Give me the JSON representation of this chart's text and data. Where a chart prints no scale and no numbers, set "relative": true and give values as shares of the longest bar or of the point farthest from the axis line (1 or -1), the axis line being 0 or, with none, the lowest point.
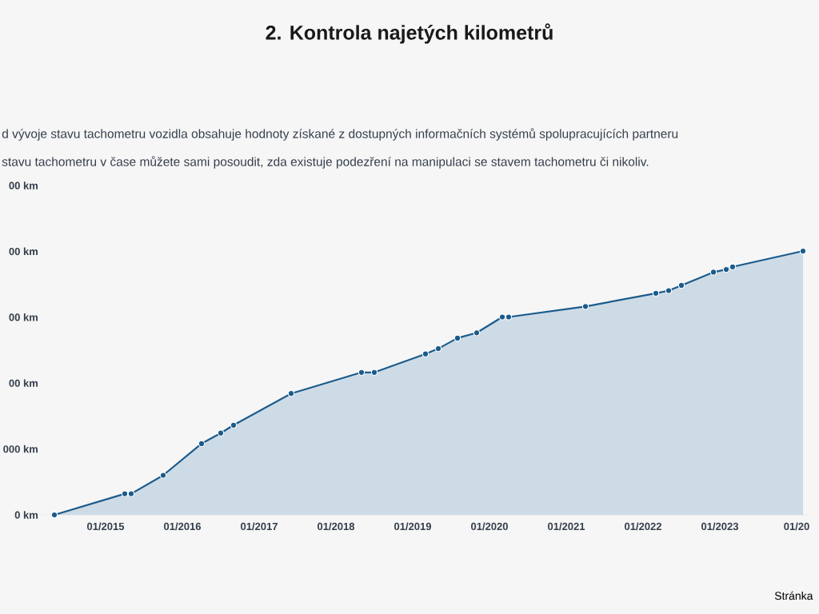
{
  "chart_data": {
    "type": "area",
    "title": "2. Kontrola najetých kilometrů",
    "subtitle": "d vývoje stavu tachometru vozidla obsahuje hodnoty získané z dostupných informačních systémů spolupracujících partneru",
    "annotations": [
      "stavu tachometru v čase můžete sami posoudit, zda existuje podezření na manipulaci se stavem tachometru či nikoliv.",
      "00 km",
      "00 km",
      "00 km",
      "00 km",
      "000 km",
      "0 km",
      "Stránka"
    ],
    "relative": true,
    "x": [
      "2014-05",
      "2015-04",
      "2015-05",
      "2015-10",
      "2016-04",
      "2016-07",
      "2016-09",
      "2017-06",
      "2018-05",
      "2018-07",
      "2019-03",
      "2019-05",
      "2019-08",
      "2019-11",
      "2020-03",
      "2020-04",
      "2021-04",
      "2022-03",
      "2022-05",
      "2022-07",
      "2022-12",
      "2023-02",
      "2023-03",
      "2024-02"
    ],
    "values": [
      0,
      0.08,
      0.08,
      0.15,
      0.27,
      0.31,
      0.34,
      0.46,
      0.54,
      0.54,
      0.61,
      0.63,
      0.67,
      0.69,
      0.75,
      0.75,
      0.79,
      0.84,
      0.85,
      0.87,
      0.92,
      0.93,
      0.94,
      1
    ],
    "color": "#1b5b8c",
    "xlim": [
      "2014-03",
      "2024-03"
    ],
    "xticks": [
      {
        "value": "2015-01",
        "label": "01/2015"
      },
      {
        "value": "2016-01",
        "label": "01/2016"
      },
      {
        "value": "2017-01",
        "label": "01/2017"
      },
      {
        "value": "2018-01",
        "label": "01/2018"
      },
      {
        "value": "2019-01",
        "label": "01/2019"
      },
      {
        "value": "2020-01",
        "label": "01/2020"
      },
      {
        "value": "2021-01",
        "label": "01/2021"
      },
      {
        "value": "2022-01",
        "label": "01/2022"
      },
      {
        "value": "2023-01",
        "label": "01/2023"
      },
      {
        "value": "2024-01",
        "label": "01/20"
      }
    ],
    "marker": "circle",
    "line_style": "solid"
  }
}
